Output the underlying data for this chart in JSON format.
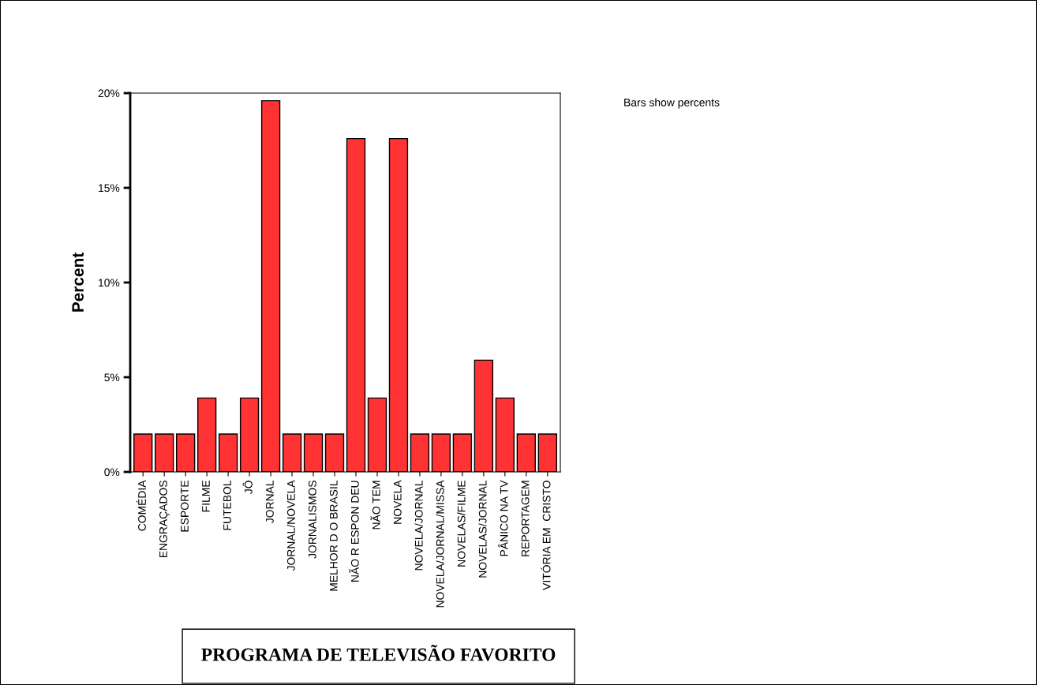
{
  "chart_data": {
    "type": "bar",
    "categories": [
      "COMÉDIA",
      "ENGRAÇADOS",
      "ESPORTE",
      "FILME",
      "FUTEBOL",
      "JÔ",
      "JORNAL",
      "JORNAL/NOVELA",
      "JORNALISMOS",
      "MELHOR D O BRASIL",
      "NÃO R ESPON DEU",
      "NÃO TEM",
      "NOVELA",
      "NOVELA/JORNAL",
      "NOVELA/JORNAL/MISSA",
      "NOVELAS/FILME",
      "NOVELAS/JORNAL",
      "PÂNICO NA TV",
      "REPORTAGEM",
      "VITÓRIA EM  CRISTO"
    ],
    "values": [
      2.0,
      2.0,
      2.0,
      3.9,
      2.0,
      3.9,
      19.6,
      2.0,
      2.0,
      2.0,
      17.6,
      3.9,
      17.6,
      2.0,
      2.0,
      2.0,
      5.9,
      3.9,
      2.0,
      2.0
    ],
    "color": "#ff3333",
    "xlabel": "PROGRAMA DE TELEVISÃO FAVORITO",
    "ylabel": "Percent",
    "annotations": [
      "Bars show percents"
    ],
    "ylim": [
      0,
      20
    ],
    "yticks": [
      {
        "value": 0,
        "label": "0%"
      },
      {
        "value": 5,
        "label": "5%"
      },
      {
        "value": 10,
        "label": "10%"
      },
      {
        "value": 15,
        "label": "15%"
      },
      {
        "value": 20,
        "label": "20%"
      }
    ],
    "grid": false,
    "legend": false
  }
}
